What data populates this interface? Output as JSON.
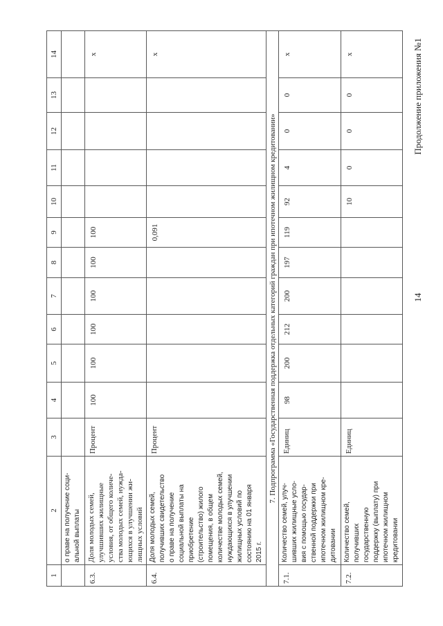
{
  "page_number": "14",
  "continuation_label": "Продолжение приложения №1",
  "table": {
    "headers": [
      "1",
      "2",
      "3",
      "4",
      "5",
      "6",
      "7",
      "8",
      "9",
      "10",
      "11",
      "12",
      "13",
      "14"
    ],
    "rows": [
      {
        "id": "",
        "name": "о праве на получение соци-\nальной выплаты",
        "unit": "",
        "values": [
          "",
          "",
          "",
          "",
          "",
          "",
          "",
          "",
          "",
          "",
          ""
        ]
      },
      {
        "id": "6.3.",
        "name": "Доля молодых семей,\nулучшивших жилищные\nусловия, от общего количе-\nства молодых семей, нужда-\nющихся в улучшении жи-\nлищных условий",
        "unit": "Процент",
        "values": [
          "100",
          "100",
          "100",
          "100",
          "100",
          "100",
          "",
          "",
          "",
          "",
          "x"
        ]
      },
      {
        "id": "6.4.",
        "name": "Доля молодых семей,\nполучивших свидетельство\nо праве на получение\nсоциальной выплаты на\nприобретение\n(строительство) жилого\nпомещения, в общем\nколичестве молодых семей,\nнуждающихся в улучшении\nжилищных условий по\nсостоянию на 01 января\n2015 г.",
        "unit": "Процент",
        "values": [
          "",
          "",
          "",
          "",
          "",
          "0,091",
          "",
          "",
          "",
          "",
          "x"
        ]
      }
    ],
    "subprogram": "7. Подпрограмма «Государственная поддержка отдельных категорий граждан при ипотечном жилищном кредитовании»",
    "rows2": [
      {
        "id": "7.1.",
        "name": "Количество семей, улуч-\nшивших жилищные усло-\nвия с помощью государ-\nственной поддержки при\nипотечном жилищном кре-\nдитовании",
        "unit": "Единиц",
        "values": [
          "98",
          "200",
          "212",
          "200",
          "197",
          "119",
          "92",
          "4",
          "0",
          "0",
          "x"
        ]
      },
      {
        "id": "7.2.",
        "name": "Количество семей,\nполучивших\nгосударственную\nподдержку (выплату) при\nипотечном жилищном\nкредитовании",
        "unit": "Единиц",
        "values": [
          "",
          "",
          "",
          "",
          "",
          "",
          "10",
          "0",
          "0",
          "0",
          "x"
        ]
      }
    ]
  }
}
